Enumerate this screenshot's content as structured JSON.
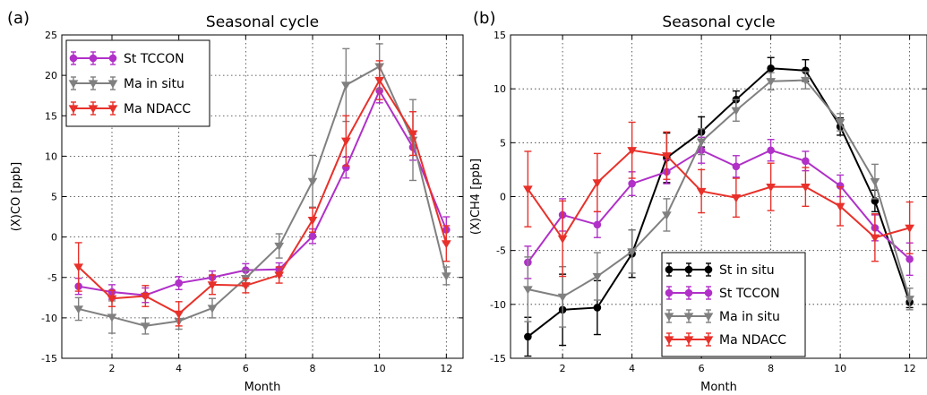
{
  "chart_data": [
    {
      "type": "line",
      "panel_label": "(a)",
      "title": "Seasonal cycle",
      "xlabel": "Month",
      "ylabel": "(X)CO [ppb]",
      "xlim": [
        0.5,
        12.5
      ],
      "ylim": [
        -15,
        25
      ],
      "xticks": [
        2,
        4,
        6,
        8,
        10,
        12
      ],
      "yticks": [
        -15,
        -10,
        -5,
        0,
        5,
        10,
        15,
        20,
        25
      ],
      "grid": true,
      "legend_position": "top-left",
      "series": [
        {
          "name": "St TCCON",
          "color": "#b030c8",
          "marker": "circle",
          "x": [
            1,
            2,
            3,
            4,
            5,
            6,
            7,
            8,
            9,
            10,
            11,
            12
          ],
          "y": [
            -6.1,
            -6.8,
            -7.2,
            -5.7,
            -5.0,
            -4.1,
            -4.0,
            0.1,
            8.6,
            18.1,
            11.1,
            0.9
          ],
          "err": [
            1.0,
            0.9,
            0.9,
            0.8,
            0.8,
            0.8,
            0.8,
            0.9,
            1.3,
            1.5,
            1.6,
            1.6
          ]
        },
        {
          "name": "Ma in situ",
          "color": "#808080",
          "marker": "triangle-down",
          "x": [
            1,
            2,
            3,
            4,
            5,
            6,
            7,
            8,
            9,
            10,
            11,
            12
          ],
          "y": [
            -8.9,
            -9.9,
            -11.0,
            -10.4,
            -8.8,
            -5.1,
            -1.1,
            6.9,
            18.8,
            21.1,
            12.0,
            -4.8
          ],
          "err": [
            1.4,
            2.0,
            1.0,
            1.0,
            1.2,
            1.0,
            1.5,
            3.2,
            4.5,
            2.8,
            5.0,
            1.1
          ]
        },
        {
          "name": "Ma NDACC",
          "color": "#e8312a",
          "marker": "triangle-down",
          "x": [
            1,
            2,
            3,
            4,
            5,
            6,
            7,
            8,
            9,
            10,
            11,
            12
          ],
          "y": [
            -3.7,
            -7.6,
            -7.3,
            -9.5,
            -5.9,
            -6.0,
            -4.7,
            2.1,
            11.9,
            19.4,
            12.8,
            -0.8
          ],
          "err": [
            3.0,
            1.0,
            1.3,
            1.5,
            1.2,
            0.9,
            1.0,
            1.5,
            3.1,
            2.4,
            2.7,
            2.2
          ]
        }
      ]
    },
    {
      "type": "line",
      "panel_label": "(b)",
      "title": "Seasonal cycle",
      "xlabel": "Month",
      "ylabel": "(X)CH4 [ppb]",
      "xlim": [
        0.5,
        12.5
      ],
      "ylim": [
        -15,
        15
      ],
      "xticks": [
        2,
        4,
        6,
        8,
        10,
        12
      ],
      "yticks": [
        -15,
        -10,
        -5,
        0,
        5,
        10,
        15
      ],
      "grid": true,
      "legend_position": "lower-center",
      "series": [
        {
          "name": "St in situ",
          "color": "#000000",
          "marker": "circle",
          "x": [
            1,
            2,
            3,
            4,
            5,
            6,
            7,
            8,
            9,
            10,
            11,
            12
          ],
          "y": [
            -13.0,
            -10.5,
            -10.3,
            -5.3,
            3.6,
            6.0,
            9.0,
            11.9,
            11.7,
            6.5,
            -0.4,
            -9.8
          ],
          "err": [
            1.8,
            3.3,
            2.5,
            2.2,
            2.3,
            1.4,
            0.8,
            1.0,
            1.0,
            0.8,
            1.0,
            0.5
          ]
        },
        {
          "name": "St TCCON",
          "color": "#b030c8",
          "marker": "circle",
          "x": [
            1,
            2,
            3,
            4,
            5,
            6,
            7,
            8,
            9,
            10,
            11,
            12
          ],
          "y": [
            -6.1,
            -1.7,
            -2.6,
            1.2,
            2.3,
            4.3,
            2.8,
            4.3,
            3.3,
            1.0,
            -2.9,
            -5.8
          ],
          "err": [
            1.5,
            1.5,
            1.2,
            1.1,
            1.1,
            1.2,
            1.0,
            1.0,
            0.9,
            1.0,
            1.2,
            1.5
          ]
        },
        {
          "name": "Ma in situ",
          "color": "#808080",
          "marker": "triangle-down",
          "x": [
            1,
            2,
            3,
            4,
            5,
            6,
            7,
            8,
            9,
            10,
            11,
            12
          ],
          "y": [
            -8.6,
            -9.3,
            -7.4,
            -5.1,
            -1.7,
            5.1,
            8.0,
            10.7,
            10.8,
            6.9,
            1.4,
            -9.5
          ],
          "err": [
            3.0,
            2.8,
            2.2,
            2.0,
            1.5,
            1.2,
            1.0,
            0.8,
            0.8,
            0.8,
            1.6,
            1.0
          ]
        },
        {
          "name": "Ma NDACC",
          "color": "#e8312a",
          "marker": "triangle-down",
          "x": [
            1,
            2,
            3,
            4,
            5,
            6,
            7,
            8,
            9,
            10,
            11,
            12
          ],
          "y": [
            0.7,
            -3.9,
            1.3,
            4.3,
            3.8,
            0.5,
            -0.1,
            0.9,
            0.9,
            -0.9,
            -3.8,
            -2.9
          ],
          "err": [
            3.5,
            3.5,
            2.7,
            2.6,
            2.2,
            2.0,
            1.8,
            2.2,
            1.8,
            1.8,
            2.2,
            2.4
          ]
        }
      ]
    }
  ]
}
